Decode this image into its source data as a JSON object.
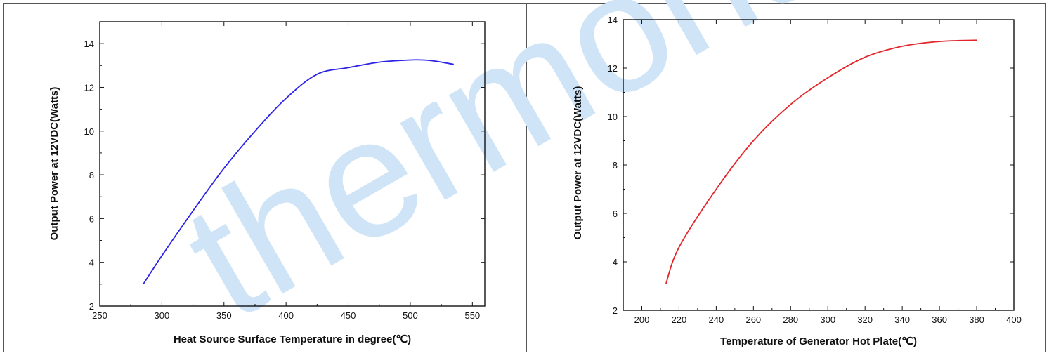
{
  "watermark": {
    "text": "thermonamic",
    "color": "#cfe4f7"
  },
  "chart_data": [
    {
      "type": "line",
      "title": "",
      "xlabel": "Heat Source Surface Temperature in degree(℃)",
      "ylabel": "Output Power at 12VDC(Watts)",
      "xlim": [
        250,
        560
      ],
      "ylim": [
        2,
        15
      ],
      "xticks": [
        "250",
        "300",
        "350",
        "400",
        "450",
        "500",
        "550"
      ],
      "yticks": [
        "2",
        "4",
        "6",
        "8",
        "10",
        "12",
        "14"
      ],
      "grid": false,
      "legend": "none",
      "series": [
        {
          "color": "#2b22e6",
          "x": [
            285,
            300,
            325,
            350,
            375,
            400,
            425,
            450,
            475,
            500,
            510,
            520,
            535
          ],
          "y": [
            3.0,
            4.3,
            6.35,
            8.3,
            10.0,
            11.5,
            12.6,
            12.9,
            13.15,
            13.25,
            13.25,
            13.2,
            13.05
          ]
        }
      ]
    },
    {
      "type": "line",
      "title": "",
      "xlabel": "Temperature of Generator Hot Plate(℃)",
      "ylabel": "Output Power at 12VDC(Watts)",
      "xlim": [
        190,
        400
      ],
      "ylim": [
        2,
        14
      ],
      "xticks": [
        "200",
        "220",
        "240",
        "260",
        "280",
        "300",
        "320",
        "340",
        "360",
        "380",
        "400"
      ],
      "yticks": [
        "2",
        "4",
        "6",
        "8",
        "10",
        "12",
        "14"
      ],
      "grid": false,
      "legend": "none",
      "series": [
        {
          "color": "#e3262b",
          "x": [
            213,
            220,
            240,
            260,
            280,
            300,
            320,
            340,
            360,
            380
          ],
          "y": [
            3.1,
            4.6,
            7.0,
            9.0,
            10.5,
            11.6,
            12.45,
            12.9,
            13.1,
            13.15
          ]
        }
      ]
    }
  ]
}
